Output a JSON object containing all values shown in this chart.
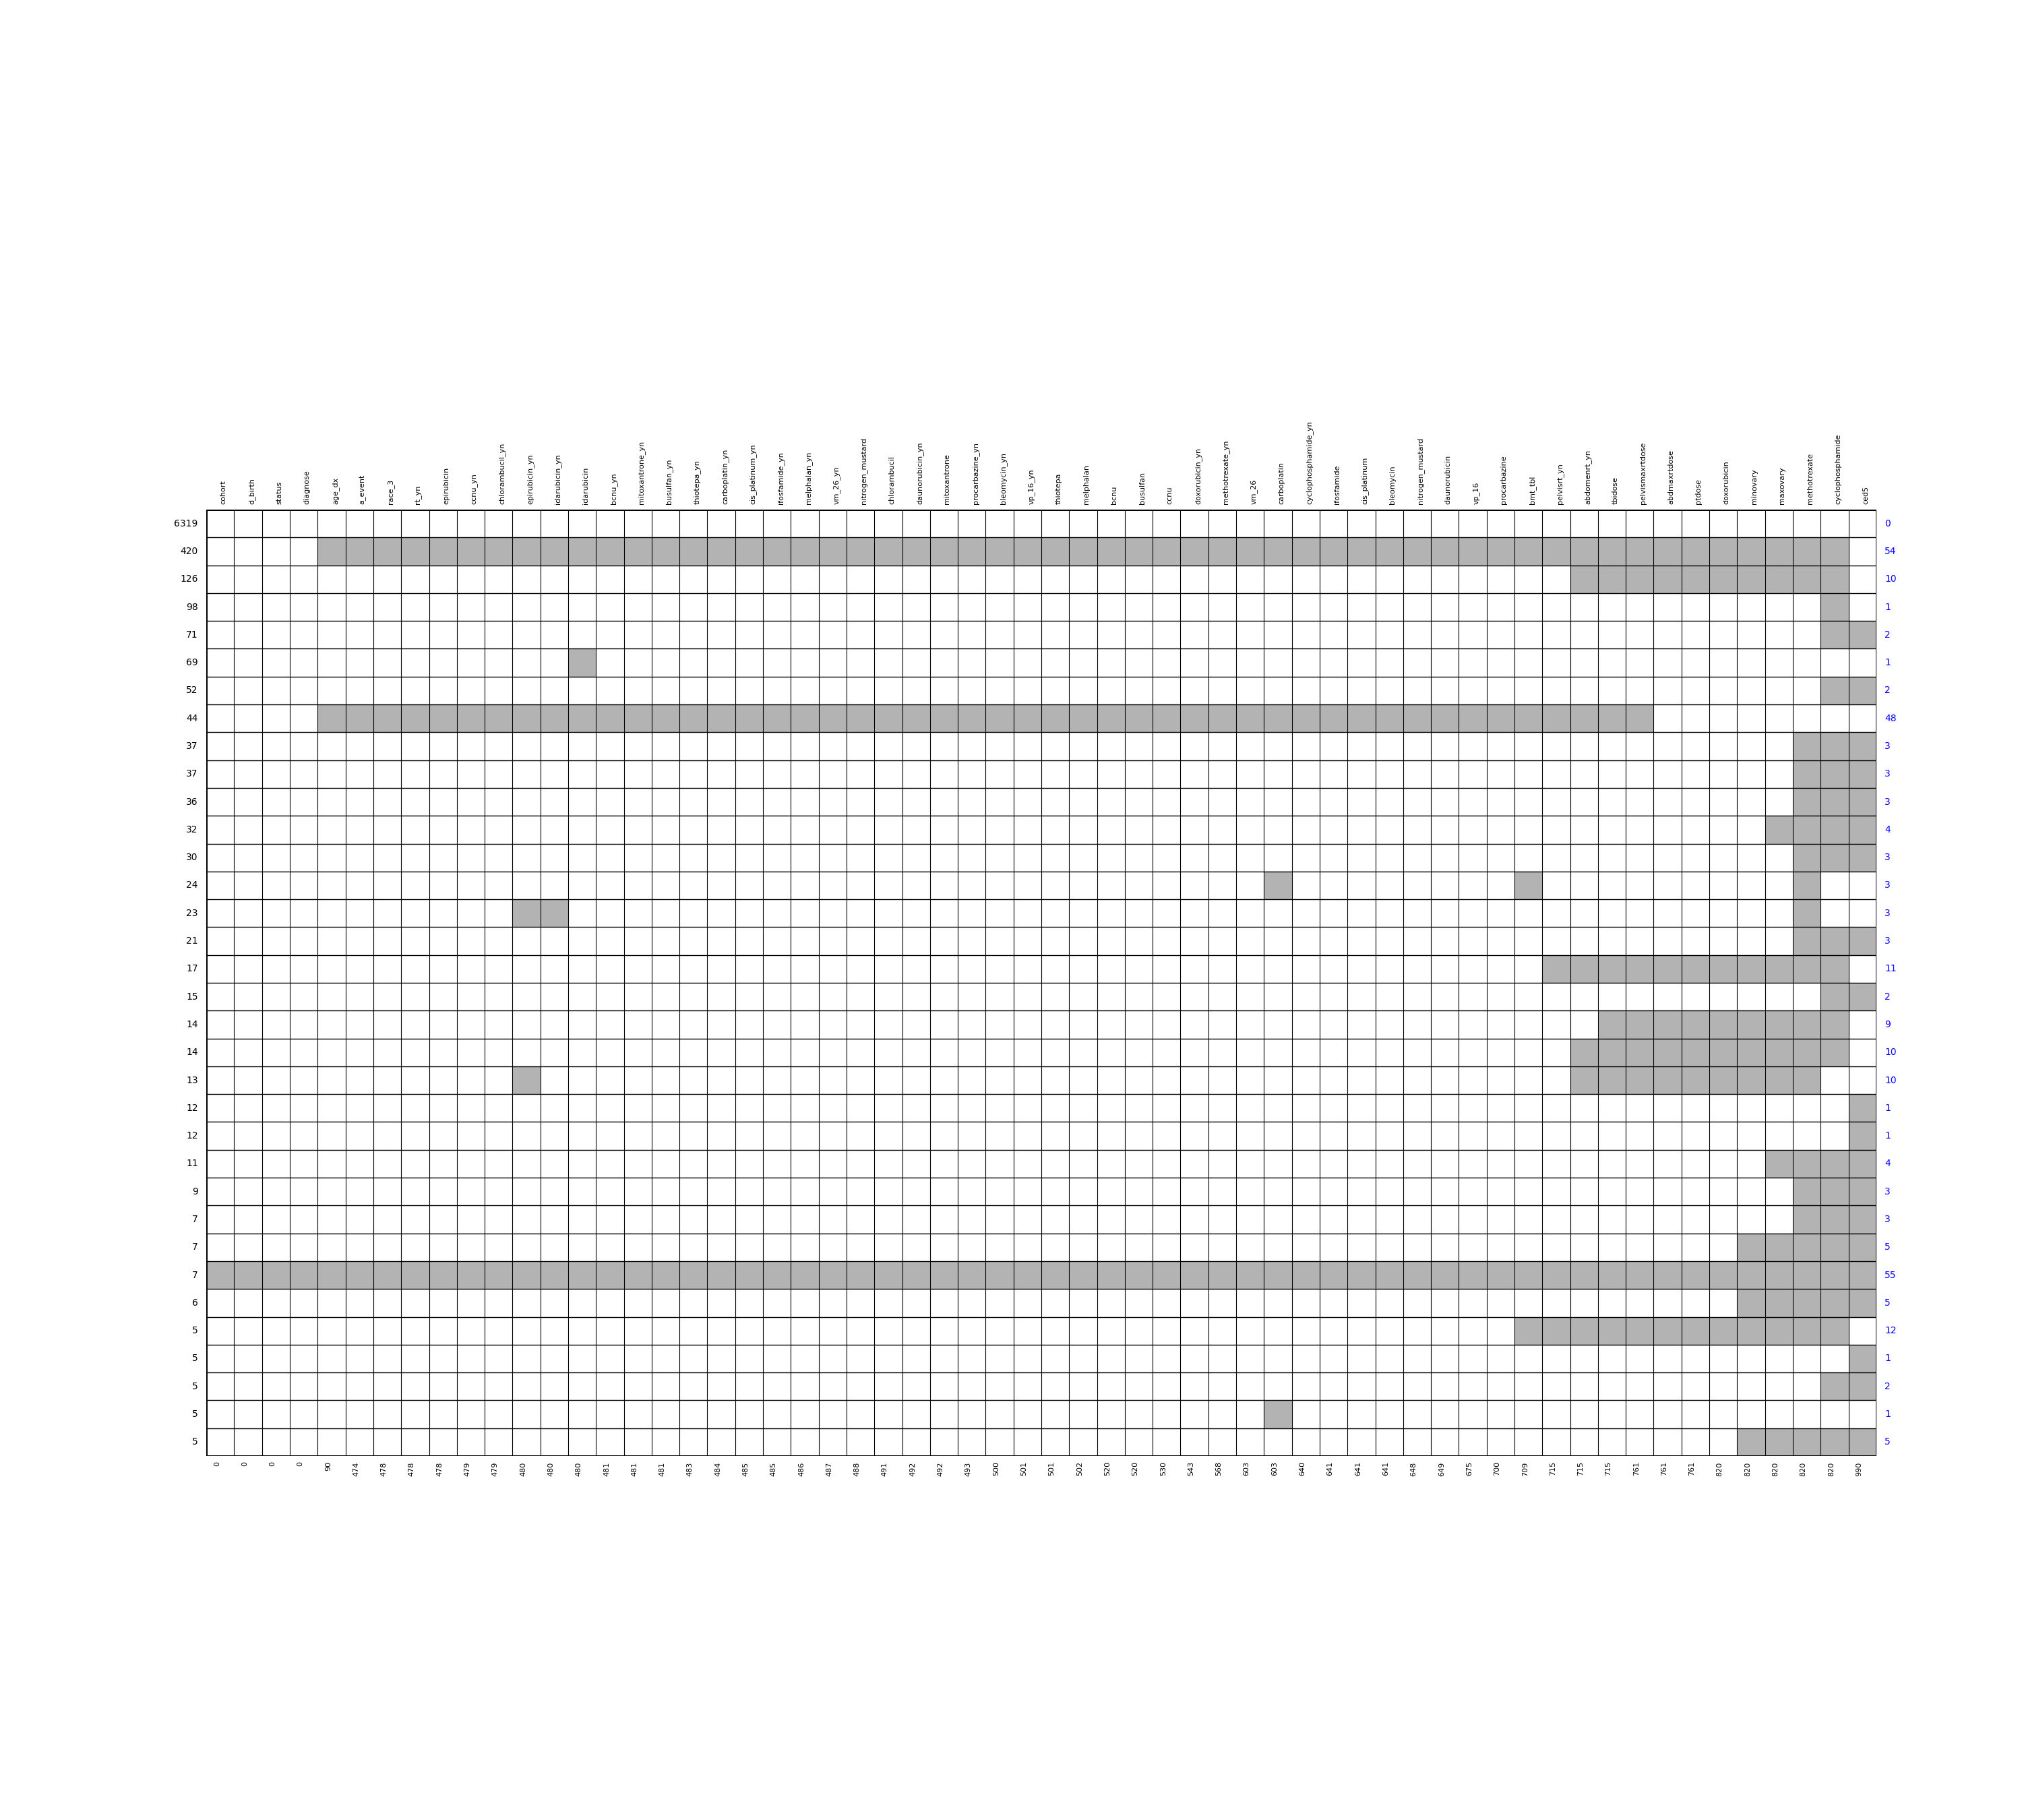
{
  "col_names": [
    "cohort",
    "d_birth",
    "status",
    "diagnose",
    "age_dx",
    "a_event",
    "race_3",
    "rt_yn",
    "epirubicin",
    "ccnu_yn",
    "chlorambucil_yn",
    "epirubicin_yn",
    "idarubicin_yn",
    "idarubicin",
    "bcnu_yn",
    "mitoxantrone_yn",
    "busulfan_yn",
    "thiotepa_yn",
    "carboplatin_yn",
    "cis_platinum_yn",
    "ifosfamide_yn",
    "melphalan_yn",
    "vm_26_yn",
    "nitrogen_mustard",
    "chlorambucil",
    "daunorubicin_yn",
    "mitoxantrone",
    "procarbazine_yn",
    "bleomycin_yn",
    "vp_16_yn",
    "thiotepa",
    "melphalan",
    "bcnu",
    "busulfan",
    "ccnu",
    "doxorubicin_yn",
    "methotrexate_yn",
    "vm_26",
    "carboplatin",
    "cyclophosphamide_yn",
    "ifosfamide",
    "cis_platinum",
    "bleomycin",
    "nitrogen_mustard",
    "daunorubicin",
    "vp_16",
    "procarbazine",
    "bmt_tbl",
    "pelvisrt_yn",
    "abdomenrt_yn",
    "tbidose",
    "pelvismaxrtdose",
    "abdmaxrtdose",
    "ptdose",
    "doxorubicin",
    "minovary",
    "maxovary",
    "methotrexate",
    "cyclophosphamide",
    "ced5"
  ],
  "col_counts": [
    0,
    0,
    0,
    0,
    90,
    474,
    478,
    478,
    478,
    479,
    479,
    480,
    480,
    480,
    481,
    481,
    481,
    483,
    484,
    485,
    485,
    486,
    487,
    488,
    491,
    492,
    492,
    493,
    500,
    501,
    501,
    502,
    520,
    520,
    530,
    543,
    568,
    603,
    603,
    640,
    641,
    641,
    641,
    648,
    649,
    675,
    700,
    709,
    715,
    715,
    715,
    761,
    761,
    761,
    820,
    820,
    820,
    820,
    820,
    990
  ],
  "row_freqs": [
    6319,
    420,
    126,
    98,
    71,
    69,
    52,
    44,
    37,
    37,
    36,
    32,
    30,
    24,
    23,
    21,
    17,
    15,
    14,
    14,
    13,
    12,
    12,
    11,
    9,
    7,
    7,
    7,
    6,
    5,
    5,
    5,
    5,
    5
  ],
  "row_right": [
    "0",
    "54",
    "10",
    "1",
    "2",
    "1",
    "2",
    "48",
    "3",
    "3",
    "3",
    "4",
    "3",
    "3",
    "3",
    "3",
    "11",
    "2",
    "9",
    "10",
    "10",
    "1",
    "1",
    "4",
    "3",
    "3",
    "5",
    "55",
    "5",
    "12",
    "1",
    "2",
    "1",
    "5"
  ],
  "missing_color": "#b3b3b3",
  "present_color": "#ffffff",
  "grid_color": "#000000"
}
